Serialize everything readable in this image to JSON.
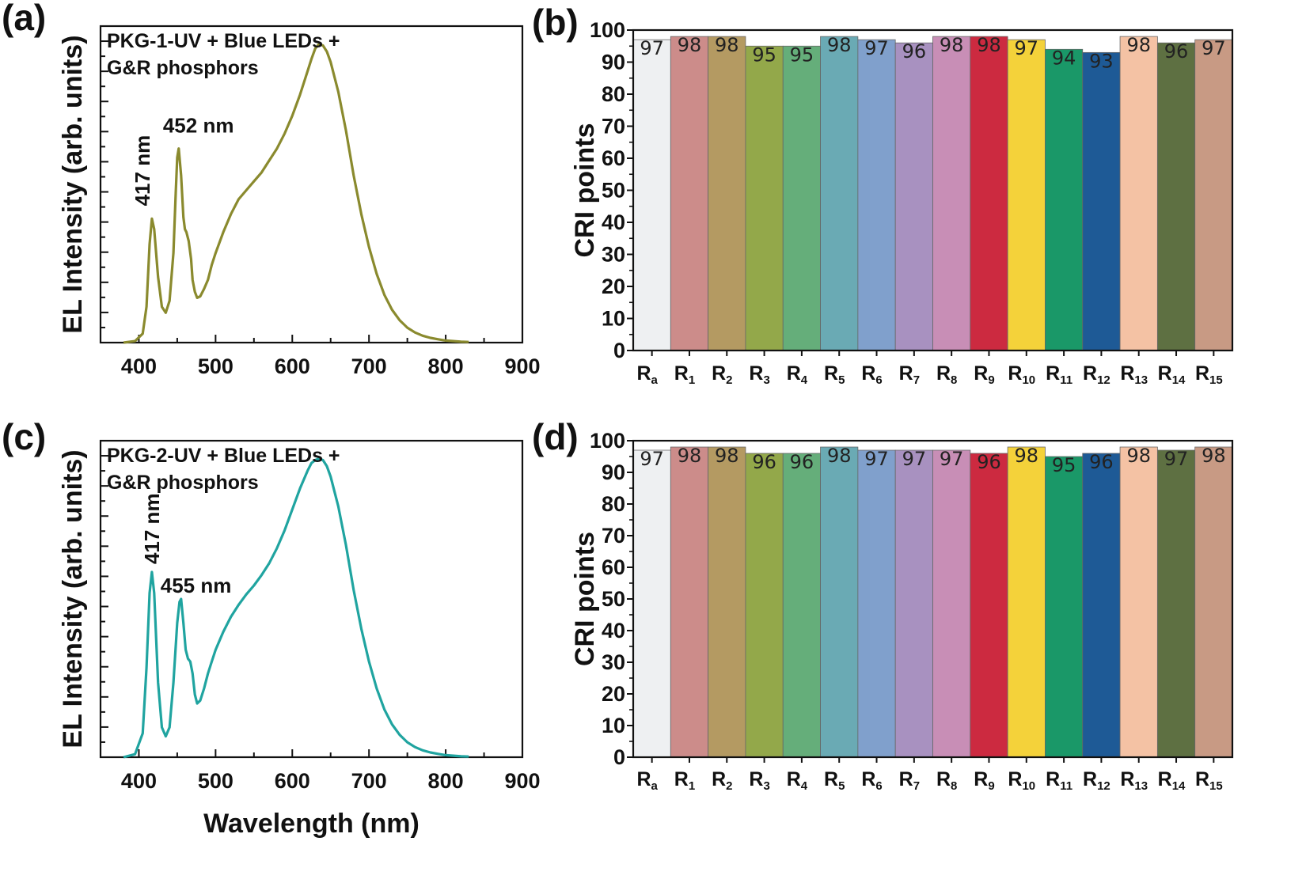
{
  "chart_data": [
    {
      "panel": "(a)",
      "type": "line",
      "legend_text": [
        "PKG-1-UV + Blue LEDs +",
        "G&R phosphors"
      ],
      "xlabel": "",
      "ylabel": "EL Intensity (arb. units)",
      "xlim": [
        350,
        900
      ],
      "ylim": [
        0,
        1.06
      ],
      "xticks": [
        400,
        500,
        600,
        700,
        800,
        900
      ],
      "color": "#8a8a2e",
      "peaks": [
        {
          "label": "417 nm",
          "x": 417,
          "y": 0.415
        },
        {
          "label": "452 nm",
          "x": 452,
          "y": 0.65
        }
      ],
      "x": [
        380,
        395,
        405,
        410,
        414,
        417,
        420,
        425,
        430,
        435,
        440,
        445,
        448,
        450,
        452,
        455,
        458,
        460,
        462,
        465,
        468,
        470,
        473,
        476,
        480,
        485,
        490,
        495,
        500,
        510,
        520,
        530,
        540,
        550,
        560,
        570,
        580,
        590,
        600,
        610,
        620,
        625,
        630,
        635,
        640,
        645,
        650,
        660,
        670,
        680,
        690,
        700,
        710,
        720,
        730,
        740,
        750,
        760,
        770,
        780,
        790,
        800,
        810,
        820,
        830
      ],
      "y": [
        0.0,
        0.005,
        0.03,
        0.12,
        0.33,
        0.415,
        0.38,
        0.22,
        0.12,
        0.1,
        0.14,
        0.3,
        0.5,
        0.62,
        0.65,
        0.56,
        0.42,
        0.38,
        0.37,
        0.34,
        0.28,
        0.21,
        0.17,
        0.15,
        0.155,
        0.18,
        0.21,
        0.26,
        0.3,
        0.37,
        0.43,
        0.48,
        0.51,
        0.54,
        0.57,
        0.61,
        0.65,
        0.7,
        0.76,
        0.83,
        0.91,
        0.95,
        0.985,
        1.0,
        0.995,
        0.975,
        0.94,
        0.84,
        0.71,
        0.56,
        0.43,
        0.32,
        0.23,
        0.16,
        0.11,
        0.075,
        0.05,
        0.034,
        0.023,
        0.016,
        0.011,
        0.007,
        0.005,
        0.003,
        0.002
      ]
    },
    {
      "panel": "(b)",
      "type": "bar",
      "ylabel": "CRI points",
      "ylim": [
        0,
        100
      ],
      "yticks": [
        0,
        10,
        20,
        30,
        40,
        50,
        60,
        70,
        80,
        90,
        100
      ],
      "categories": [
        {
          "main": "R",
          "sub": "a"
        },
        {
          "main": "R",
          "sub": "1"
        },
        {
          "main": "R",
          "sub": "2"
        },
        {
          "main": "R",
          "sub": "3"
        },
        {
          "main": "R",
          "sub": "4"
        },
        {
          "main": "R",
          "sub": "5"
        },
        {
          "main": "R",
          "sub": "6"
        },
        {
          "main": "R",
          "sub": "7"
        },
        {
          "main": "R",
          "sub": "8"
        },
        {
          "main": "R",
          "sub": "9"
        },
        {
          "main": "R",
          "sub": "10"
        },
        {
          "main": "R",
          "sub": "11"
        },
        {
          "main": "R",
          "sub": "12"
        },
        {
          "main": "R",
          "sub": "13"
        },
        {
          "main": "R",
          "sub": "14"
        },
        {
          "main": "R",
          "sub": "15"
        }
      ],
      "values": [
        97,
        98,
        98,
        95,
        95,
        98,
        97,
        96,
        98,
        98,
        97,
        94,
        93,
        98,
        96,
        97
      ],
      "value_labels": [
        "97",
        "98",
        "98",
        "95",
        "95",
        "98",
        "97",
        "96",
        "98",
        "98",
        "97",
        "94",
        "93",
        "98",
        "96",
        "97"
      ],
      "colors": [
        "#eef0f2",
        "#cc8c8a",
        "#b49a62",
        "#93a84a",
        "#65ae7a",
        "#6aaab4",
        "#80a0cc",
        "#a891c0",
        "#c88eb6",
        "#cc2a40",
        "#f4d23a",
        "#1a9868",
        "#1e5a96",
        "#f4c2a4",
        "#5e7042",
        "#c89a84"
      ]
    },
    {
      "panel": "(c)",
      "type": "line",
      "legend_text": [
        "PKG-2-UV + Blue LEDs +",
        "G&R phosphors"
      ],
      "xlabel": "Wavelength (nm)",
      "ylabel": "EL Intensity (arb. units)",
      "xlim": [
        350,
        900
      ],
      "ylim": [
        0,
        1.06
      ],
      "xticks": [
        400,
        500,
        600,
        700,
        800,
        900
      ],
      "color": "#20a4a0",
      "peaks": [
        {
          "label": "417 nm",
          "x": 417,
          "y": 0.62
        },
        {
          "label": "455 nm",
          "x": 455,
          "y": 0.53
        }
      ],
      "x": [
        380,
        395,
        405,
        410,
        414,
        417,
        420,
        425,
        430,
        435,
        440,
        445,
        450,
        453,
        455,
        458,
        461,
        464,
        467,
        470,
        473,
        476,
        480,
        485,
        490,
        495,
        500,
        510,
        520,
        530,
        540,
        550,
        560,
        570,
        580,
        590,
        600,
        610,
        620,
        625,
        630,
        635,
        640,
        645,
        650,
        660,
        670,
        680,
        690,
        700,
        710,
        720,
        730,
        740,
        750,
        760,
        770,
        780,
        790,
        800,
        810,
        820,
        830
      ],
      "y": [
        0.0,
        0.01,
        0.08,
        0.3,
        0.55,
        0.62,
        0.55,
        0.25,
        0.1,
        0.07,
        0.1,
        0.25,
        0.45,
        0.52,
        0.53,
        0.45,
        0.36,
        0.33,
        0.32,
        0.28,
        0.21,
        0.18,
        0.19,
        0.23,
        0.28,
        0.32,
        0.36,
        0.42,
        0.47,
        0.51,
        0.545,
        0.575,
        0.61,
        0.65,
        0.7,
        0.76,
        0.83,
        0.9,
        0.96,
        0.985,
        0.995,
        1.0,
        0.995,
        0.975,
        0.94,
        0.84,
        0.71,
        0.56,
        0.43,
        0.32,
        0.23,
        0.16,
        0.11,
        0.075,
        0.05,
        0.034,
        0.023,
        0.016,
        0.011,
        0.007,
        0.005,
        0.003,
        0.002
      ]
    },
    {
      "panel": "(d)",
      "type": "bar",
      "ylabel": "CRI points",
      "ylim": [
        0,
        100
      ],
      "yticks": [
        0,
        10,
        20,
        30,
        40,
        50,
        60,
        70,
        80,
        90,
        100
      ],
      "categories": [
        {
          "main": "R",
          "sub": "a"
        },
        {
          "main": "R",
          "sub": "1"
        },
        {
          "main": "R",
          "sub": "2"
        },
        {
          "main": "R",
          "sub": "3"
        },
        {
          "main": "R",
          "sub": "4"
        },
        {
          "main": "R",
          "sub": "5"
        },
        {
          "main": "R",
          "sub": "6"
        },
        {
          "main": "R",
          "sub": "7"
        },
        {
          "main": "R",
          "sub": "8"
        },
        {
          "main": "R",
          "sub": "9"
        },
        {
          "main": "R",
          "sub": "10"
        },
        {
          "main": "R",
          "sub": "11"
        },
        {
          "main": "R",
          "sub": "12"
        },
        {
          "main": "R",
          "sub": "13"
        },
        {
          "main": "R",
          "sub": "14"
        },
        {
          "main": "R",
          "sub": "15"
        }
      ],
      "values": [
        97,
        98,
        98,
        96,
        96,
        98,
        97,
        97,
        97,
        96,
        98,
        95,
        96,
        98,
        97,
        98
      ],
      "value_labels": [
        "97",
        "98",
        "98",
        "96",
        "96",
        "98",
        "97",
        "97",
        "97",
        "96",
        "98",
        "95",
        "96",
        "98",
        "97",
        "98"
      ],
      "colors": [
        "#eef0f2",
        "#cc8c8a",
        "#b49a62",
        "#93a84a",
        "#65ae7a",
        "#6aaab4",
        "#80a0cc",
        "#a891c0",
        "#c88eb6",
        "#cc2a40",
        "#f4d23a",
        "#1a9868",
        "#1e5a96",
        "#f4c2a4",
        "#5e7042",
        "#c89a84"
      ]
    }
  ]
}
